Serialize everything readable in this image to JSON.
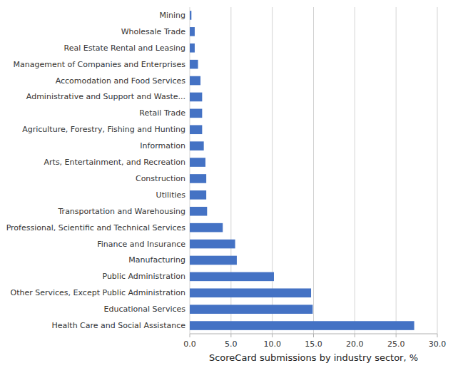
{
  "chart_data": {
    "type": "bar",
    "orientation": "horizontal",
    "x_label": "ScoreCard submissions by industry sector, %",
    "categories": [
      "Health Care and Social Assistance",
      "Educational Services",
      "Other Services, Except Public Administration",
      "Public Administration",
      "Manufacturing",
      "Finance and Insurance",
      "Professional, Scientific and Technical Services",
      "Transportation and Warehousing",
      "Utilities",
      "Construction",
      "Arts, Entertainment, and Recreation",
      "Information",
      "Agriculture, Forestry, Fishing and Hunting",
      "Retail Trade",
      "Administrative and Support and Waste...",
      "Accomodation and Food Services",
      "Management of Companies and Enterprises",
      "Real Estate Rental and Leasing",
      "Wholesale Trade",
      "Mining"
    ],
    "values": [
      27.2,
      14.9,
      14.7,
      10.2,
      5.7,
      5.5,
      4.0,
      2.1,
      2.0,
      2.0,
      1.9,
      1.7,
      1.5,
      1.5,
      1.5,
      1.3,
      1.0,
      0.6,
      0.6,
      0.2
    ],
    "color": "#4472C4",
    "xlim": [
      0,
      30.0
    ],
    "xticks": [
      {
        "value": 0.0,
        "label": "0.0"
      },
      {
        "value": 5.0,
        "label": "5.0"
      },
      {
        "value": 10.0,
        "label": "10.0"
      },
      {
        "value": 15.0,
        "label": "15.0"
      },
      {
        "value": 20.0,
        "label": "20.0"
      },
      {
        "value": 25.0,
        "label": "25.0"
      },
      {
        "value": 30.0,
        "label": "30.0"
      }
    ],
    "grid": true
  }
}
